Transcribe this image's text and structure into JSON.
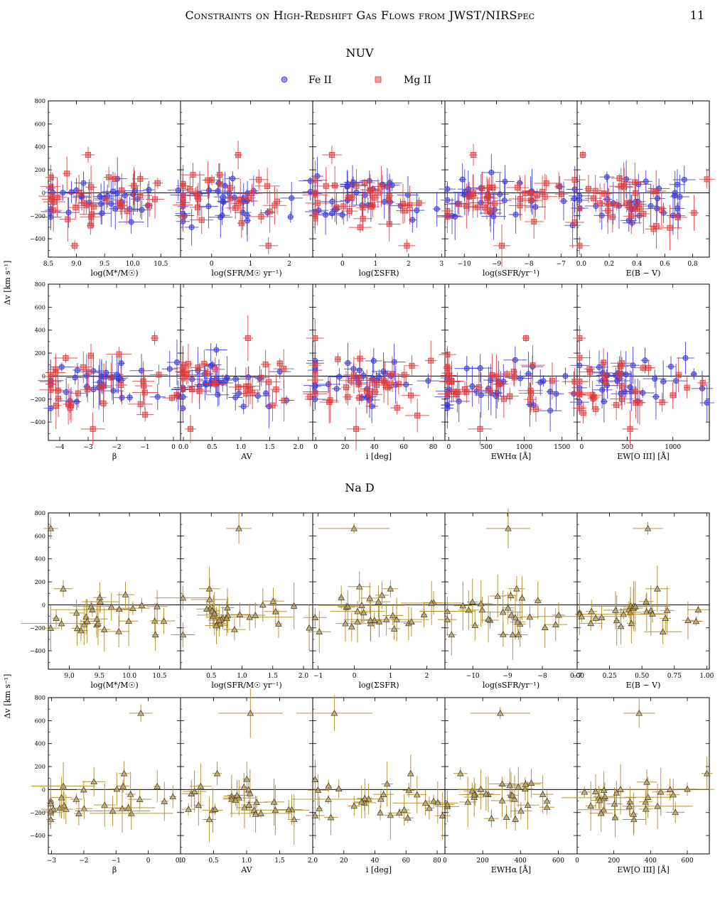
{
  "page": {
    "running_title": "Constraints on High-Redshift Gas Flows from JWST/NIRSpec",
    "page_number": "11"
  },
  "figure": {
    "y_axis_label": "Δv [km s⁻¹]",
    "y_ticks": [
      -400,
      -200,
      0,
      200,
      400,
      600,
      800
    ],
    "y_range": [
      -560,
      800
    ],
    "colors": {
      "fe": "#3b3bd8",
      "mg": "#e0393a",
      "nad": "#b08a1e",
      "nad_fill": "#b8a07a"
    },
    "sections": [
      {
        "title": "NUV",
        "legend": [
          {
            "label": "Fe II",
            "marker": "circle",
            "color": "#3b3bd8"
          },
          {
            "label": "Mg II",
            "marker": "square",
            "color": "#e0393a"
          }
        ],
        "rows": [
          [
            {
              "xlabel": "log(M*/M☉)",
              "xlim": [
                8.5,
                10.85
              ],
              "xticks": [
                "8.5",
                "9.0",
                "9.5",
                "10.0",
                "10.5"
              ],
              "xtick_vals": [
                8.5,
                9.0,
                9.5,
                10.0,
                10.5
              ]
            },
            {
              "xlabel": "log(SFR/M☉ yr⁻¹)",
              "xlim": [
                -0.8,
                2.6
              ],
              "xticks": [
                "0",
                "1",
                "2"
              ],
              "xtick_vals": [
                0,
                1,
                2
              ]
            },
            {
              "xlabel": "log(ΣSFR)",
              "xlim": [
                -0.9,
                3.1
              ],
              "xticks": [
                "0",
                "1",
                "2",
                "3"
              ],
              "xtick_vals": [
                0,
                1,
                2,
                3
              ]
            },
            {
              "xlabel": "log(sSFR/yr⁻¹)",
              "xlim": [
                -10.6,
                -6.5
              ],
              "xticks": [
                "−10",
                "−9",
                "−8",
                "−7"
              ],
              "xtick_vals": [
                -10,
                -9,
                -8,
                -7
              ]
            },
            {
              "xlabel": "E(B − V)",
              "xlim": [
                -0.03,
                0.92
              ],
              "xticks": [
                "0.0",
                "0.2",
                "0.4",
                "0.6",
                "0.8"
              ],
              "xtick_vals": [
                0,
                0.2,
                0.4,
                0.6,
                0.8
              ]
            }
          ],
          [
            {
              "xlabel": "β",
              "xlim": [
                -4.4,
                0.25
              ],
              "xticks": [
                "−4",
                "−3",
                "−2",
                "−1",
                "0"
              ],
              "xtick_vals": [
                -4,
                -3,
                -2,
                -1,
                0
              ]
            },
            {
              "xlabel": "AV",
              "xlim": [
                -0.05,
                2.25
              ],
              "xticks": [
                "0.0",
                "0.5",
                "1.0",
                "1.5",
                "2.0"
              ],
              "xtick_vals": [
                0,
                0.5,
                1.0,
                1.5,
                2.0
              ]
            },
            {
              "xlabel": "i [deg]",
              "xlim": [
                -2,
                88
              ],
              "xticks": [
                "0",
                "20",
                "40",
                "60",
                "80"
              ],
              "xtick_vals": [
                0,
                20,
                40,
                60,
                80
              ]
            },
            {
              "xlabel": "EWHα [Å]",
              "xlim": [
                -50,
                1700
              ],
              "xticks": [
                "0",
                "500",
                "1000",
                "1500"
              ],
              "xtick_vals": [
                0,
                500,
                1000,
                1500
              ]
            },
            {
              "xlabel": "EW[O III] [Å]",
              "xlim": [
                -50,
                1400
              ],
              "xticks": [
                "0",
                "500",
                "1000"
              ],
              "xtick_vals": [
                0,
                500,
                1000
              ]
            }
          ]
        ]
      },
      {
        "title": "Na D",
        "rows": [
          [
            {
              "xlabel": "log(M*/M☉)",
              "xlim": [
                8.65,
                10.85
              ],
              "xticks": [
                "9.0",
                "9.5",
                "10.0",
                "10.5"
              ],
              "xtick_vals": [
                9.0,
                9.5,
                10.0,
                10.5
              ]
            },
            {
              "xlabel": "log(SFR/M☉ yr⁻¹)",
              "xlim": [
                0.0,
                2.15
              ],
              "xticks": [
                "0.5",
                "1.0",
                "1.5",
                "2.0"
              ],
              "xtick_vals": [
                0.5,
                1.0,
                1.5,
                2.0
              ]
            },
            {
              "xlabel": "log(ΣSFR)",
              "xlim": [
                -1.15,
                2.5
              ],
              "xticks": [
                "−1",
                "0",
                "1",
                "2"
              ],
              "xtick_vals": [
                -1,
                0,
                1,
                2
              ]
            },
            {
              "xlabel": "log(sSFR/yr⁻¹)",
              "xlim": [
                -10.8,
                -7.0
              ],
              "xticks": [
                "−10",
                "−9",
                "−8",
                "−7"
              ],
              "xtick_vals": [
                -10,
                -9,
                -8,
                -7
              ]
            },
            {
              "xlabel": "E(B − V)",
              "xlim": [
                0.0,
                1.02
              ],
              "xticks": [
                "0.00",
                "0.25",
                "0.50",
                "0.75",
                "1.00"
              ],
              "xtick_vals": [
                0,
                0.25,
                0.5,
                0.75,
                1.0
              ]
            }
          ],
          [
            {
              "xlabel": "β",
              "xlim": [
                -3.1,
                1.0
              ],
              "xticks": [
                "−3",
                "−2",
                "−1",
                "0",
                "1"
              ],
              "xtick_vals": [
                -3,
                -2,
                -1,
                0,
                1
              ]
            },
            {
              "xlabel": "AV",
              "xlim": [
                0.0,
                2.0
              ],
              "xticks": [
                "0.0",
                "0.5",
                "1.0",
                "1.5",
                "2.0"
              ],
              "xtick_vals": [
                0,
                0.5,
                1.0,
                1.5,
                2.0
              ]
            },
            {
              "xlabel": "i [deg]",
              "xlim": [
                0,
                85
              ],
              "xticks": [
                "20",
                "40",
                "60",
                "80"
              ],
              "xtick_vals": [
                20,
                40,
                60,
                80
              ]
            },
            {
              "xlabel": "EWHα [Å]",
              "xlim": [
                0,
                700
              ],
              "xticks": [
                "0",
                "200",
                "400",
                "600"
              ],
              "xtick_vals": [
                0,
                200,
                400,
                600
              ]
            },
            {
              "xlabel": "EW[O III] [Å]",
              "xlim": [
                0,
                720
              ],
              "xticks": [
                "0",
                "200",
                "400",
                "600"
              ],
              "xtick_vals": [
                0,
                200,
                400,
                600
              ]
            }
          ]
        ]
      }
    ]
  },
  "chart_data": {
    "type": "scatter",
    "title": "",
    "ylabel": "Δv [km s⁻¹]",
    "ylim": [
      -560,
      800
    ],
    "grid": false,
    "legend_placement": "top-center",
    "series": [
      {
        "name": "Fe II",
        "marker": "circle",
        "values_y": [
          210,
          130,
          100,
          60,
          40,
          20,
          0,
          -20,
          -40,
          -60,
          -80,
          -100,
          -120,
          -140,
          -160,
          -180,
          -200,
          -220,
          -240,
          -280,
          -160,
          -130,
          -100,
          -70,
          -50,
          30,
          -10,
          150,
          70,
          -190
        ]
      },
      {
        "name": "Mg II",
        "marker": "square",
        "values_y": [
          330,
          190,
          170,
          140,
          120,
          100,
          80,
          60,
          40,
          20,
          0,
          -20,
          -40,
          -60,
          -80,
          -100,
          -120,
          -150,
          -180,
          -210,
          -240,
          -280,
          -310,
          -350,
          -460,
          -300,
          -250,
          -200,
          60,
          -120
        ]
      },
      {
        "name": "Na D",
        "marker": "triangle",
        "values_y": [
          665,
          140,
          80,
          60,
          20,
          0,
          -20,
          -40,
          -60,
          -80,
          -100,
          -120,
          -140,
          -160,
          -180,
          -200,
          -220,
          -240,
          -260,
          -50,
          -70,
          -90,
          -110,
          -130,
          -150,
          -170,
          -190,
          -210,
          -230
        ]
      }
    ]
  }
}
